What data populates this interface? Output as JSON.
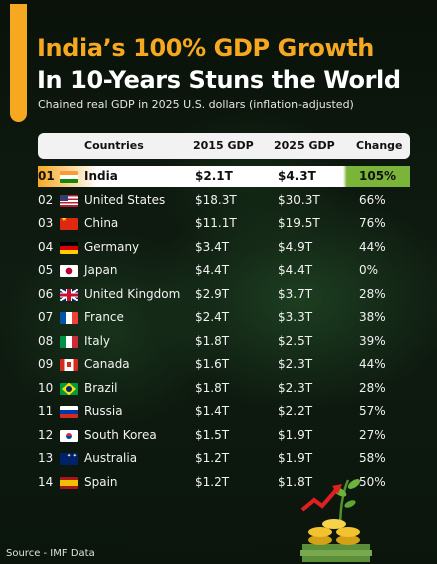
{
  "header": {
    "title_line1": "India’s 100% GDP Growth",
    "title_line2": "In 10-Years Stuns the World",
    "subtitle": "Chained real GDP in 2025 U.S. dollars (inflation-adjusted)"
  },
  "table": {
    "columns": {
      "countries": "Countries",
      "gdp2015": "2015 GDP",
      "gdp2025": "2025 GDP",
      "change": "Change"
    },
    "rows": [
      {
        "rank": "01",
        "flag": "india-flag-icon",
        "country": "India",
        "gdp2015": "$2.1T",
        "gdp2025": "$4.3T",
        "change": "105%"
      },
      {
        "rank": "02",
        "flag": "us-flag-icon",
        "country": "United States",
        "gdp2015": "$18.3T",
        "gdp2025": "$30.3T",
        "change": "66%"
      },
      {
        "rank": "03",
        "flag": "china-flag-icon",
        "country": "China",
        "gdp2015": "$11.1T",
        "gdp2025": "$19.5T",
        "change": "76%"
      },
      {
        "rank": "04",
        "flag": "germany-flag-icon",
        "country": "Germany",
        "gdp2015": "$3.4T",
        "gdp2025": "$4.9T",
        "change": "44%"
      },
      {
        "rank": "05",
        "flag": "japan-flag-icon",
        "country": "Japan",
        "gdp2015": "$4.4T",
        "gdp2025": "$4.4T",
        "change": "0%"
      },
      {
        "rank": "06",
        "flag": "uk-flag-icon",
        "country": "United Kingdom",
        "gdp2015": "$2.9T",
        "gdp2025": "$3.7T",
        "change": "28%"
      },
      {
        "rank": "07",
        "flag": "france-flag-icon",
        "country": "France",
        "gdp2015": "$2.4T",
        "gdp2025": "$3.3T",
        "change": "38%"
      },
      {
        "rank": "08",
        "flag": "italy-flag-icon",
        "country": "Italy",
        "gdp2015": "$1.8T",
        "gdp2025": "$2.5T",
        "change": "39%"
      },
      {
        "rank": "09",
        "flag": "canada-flag-icon",
        "country": "Canada",
        "gdp2015": "$1.6T",
        "gdp2025": "$2.3T",
        "change": "44%"
      },
      {
        "rank": "10",
        "flag": "brazil-flag-icon",
        "country": "Brazil",
        "gdp2015": "$1.8T",
        "gdp2025": "$2.3T",
        "change": "28%"
      },
      {
        "rank": "11",
        "flag": "russia-flag-icon",
        "country": "Russia",
        "gdp2015": "$1.4T",
        "gdp2025": "$2.2T",
        "change": "57%"
      },
      {
        "rank": "12",
        "flag": "south-korea-flag-icon",
        "country": "South Korea",
        "gdp2015": "$1.5T",
        "gdp2025": "$1.9T",
        "change": "27%"
      },
      {
        "rank": "13",
        "flag": "australia-flag-icon",
        "country": "Australia",
        "gdp2015": "$1.2T",
        "gdp2025": "$1.9T",
        "change": "58%"
      },
      {
        "rank": "14",
        "flag": "spain-flag-icon",
        "country": "Spain",
        "gdp2015": "$1.2T",
        "gdp2025": "$1.8T",
        "change": "50%"
      }
    ]
  },
  "footer": {
    "source": "Source - IMF Data"
  },
  "colors": {
    "accent": "#f6a820",
    "positive": "#7ab53a",
    "background": "#0c160e"
  }
}
